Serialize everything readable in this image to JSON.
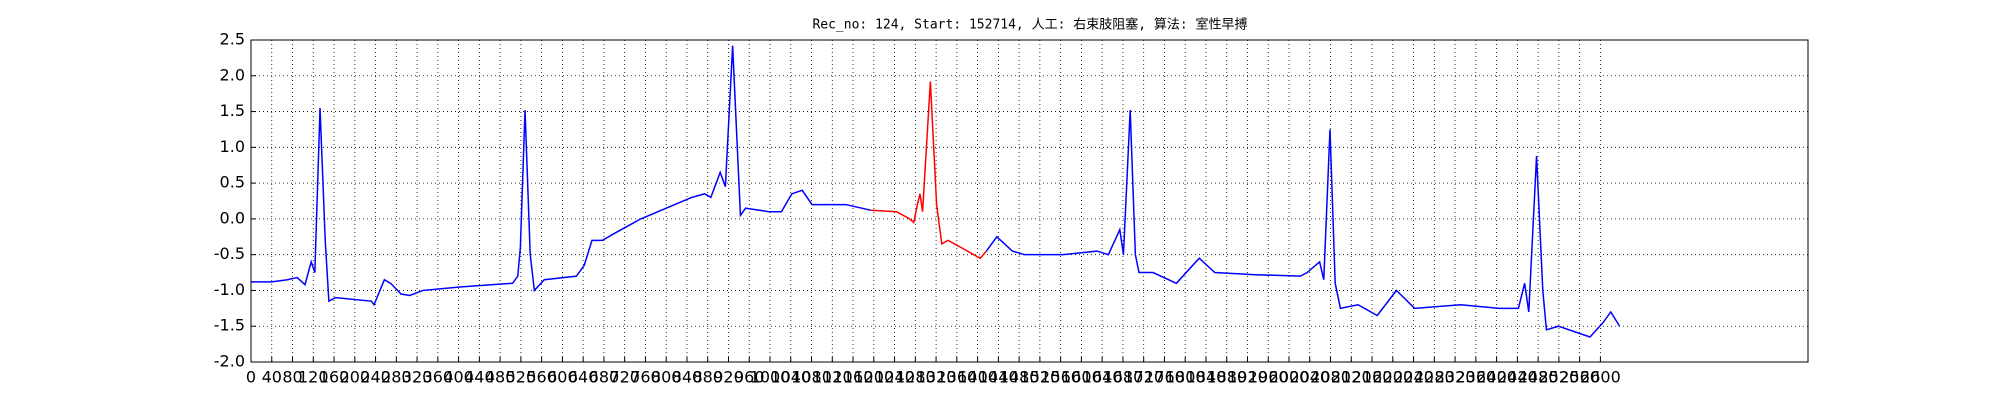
{
  "chart_data": {
    "type": "line",
    "title": "Rec_no: 124, Start: 152714, 人工: 右束肢阻塞, 算法: 室性早搏",
    "x": [
      0,
      40,
      70,
      89,
      104,
      116,
      123,
      133,
      143,
      150,
      163,
      232,
      237,
      257,
      269,
      289,
      306,
      331,
      405,
      504,
      514,
      519,
      528,
      538,
      546,
      565,
      627,
      642,
      657,
      677,
      701,
      751,
      800,
      849,
      874,
      886,
      904,
      914,
      928,
      943,
      953,
      998,
      1022,
      1042,
      1062,
      1081,
      1121,
      1146,
      1195,
      1244,
      1269,
      1277,
      1284,
      1289,
      1294,
      1309,
      1321,
      1331,
      1343,
      1368,
      1405,
      1417,
      1437,
      1467,
      1491,
      1565,
      1630,
      1652,
      1674,
      1681,
      1694,
      1704,
      1711,
      1738,
      1783,
      1827,
      1857,
      1936,
      2022,
      2035,
      2059,
      2067,
      2079,
      2089,
      2099,
      2133,
      2170,
      2207,
      2242,
      2331,
      2405,
      2430,
      2442,
      2454,
      2462,
      2477,
      2489,
      2496,
      2519,
      2580,
      2605,
      2620,
      2637
    ],
    "series": [
      {
        "color": "#0000ff",
        "values": [
          -0.88,
          -0.88,
          -0.85,
          -0.82,
          -0.92,
          -0.6,
          -0.75,
          1.55,
          -0.3,
          -1.15,
          -1.1,
          -1.15,
          -1.2,
          -0.85,
          -0.9,
          -1.05,
          -1.07,
          -1.0,
          -0.95,
          -0.9,
          -0.8,
          -0.4,
          1.52,
          -0.5,
          -1.0,
          -0.85,
          -0.8,
          -0.65,
          -0.3,
          -0.3,
          -0.2,
          0.0,
          0.15,
          0.3,
          0.35,
          0.3,
          0.65,
          0.45,
          2.42,
          0.05,
          0.15,
          0.1,
          0.1,
          0.35,
          0.4,
          0.2,
          0.2,
          0.2,
          0.12,
          null,
          null,
          null,
          null,
          null,
          null,
          null,
          null,
          null,
          null,
          null,
          null,
          -0.45,
          -0.25,
          -0.45,
          -0.5,
          -0.5,
          -0.45,
          -0.5,
          -0.15,
          -0.5,
          1.52,
          -0.5,
          -0.75,
          -0.75,
          -0.9,
          -0.55,
          -0.75,
          -0.78,
          -0.8,
          -0.75,
          -0.6,
          -0.85,
          1.25,
          -0.9,
          -1.25,
          -1.2,
          -1.35,
          -1.0,
          -1.25,
          -1.2,
          -1.25,
          -1.25,
          -1.25,
          -0.9,
          -1.3,
          0.88,
          -1.0,
          -1.55,
          -1.5,
          -1.65,
          -1.45,
          -1.3,
          -1.5
        ]
      },
      {
        "color": "#ff0000",
        "values": [
          null,
          null,
          null,
          null,
          null,
          null,
          null,
          null,
          null,
          null,
          null,
          null,
          null,
          null,
          null,
          null,
          null,
          null,
          null,
          null,
          null,
          null,
          null,
          null,
          null,
          null,
          null,
          null,
          null,
          null,
          null,
          null,
          null,
          null,
          null,
          null,
          null,
          null,
          null,
          null,
          null,
          null,
          null,
          null,
          null,
          null,
          null,
          null,
          0.12,
          0.1,
          0.0,
          -0.05,
          0.2,
          0.35,
          0.1,
          1.92,
          0.2,
          -0.35,
          -0.3,
          -0.4,
          -0.55,
          -0.45,
          null,
          null,
          null,
          null,
          null,
          null,
          null,
          null,
          null,
          null,
          null,
          null,
          null,
          null,
          null,
          null,
          null,
          null,
          null,
          null,
          null,
          null,
          null,
          null,
          null,
          null,
          null,
          null,
          null,
          null,
          null,
          null,
          null,
          null,
          null,
          null,
          null,
          null,
          null,
          null,
          null
        ]
      }
    ],
    "xlim": [
      0,
      3000
    ],
    "xticks": [
      0,
      40,
      80,
      120,
      160,
      200,
      240,
      280,
      320,
      360,
      400,
      440,
      480,
      520,
      560,
      600,
      640,
      680,
      720,
      760,
      800,
      840,
      880,
      920,
      960,
      1000,
      1040,
      1080,
      1120,
      1160,
      1200,
      1240,
      1280,
      1320,
      1360,
      1400,
      1440,
      1480,
      1520,
      1560,
      1600,
      1640,
      1680,
      1720,
      1760,
      1800,
      1840,
      1880,
      1920,
      1960,
      2000,
      2040,
      2080,
      2120,
      2160,
      2200,
      2240,
      2280,
      2320,
      2360,
      2400,
      2440,
      2480,
      2520,
      2560,
      2600
    ],
    "ylim": [
      -2.0,
      2.5
    ],
    "yticks": [
      {
        "value": -2.0,
        "label": "-2.0"
      },
      -1.5,
      {
        "value": -1.0,
        "label": "-1.0"
      },
      -0.5,
      {
        "value": 0.0,
        "label": "0.0"
      },
      0.5,
      {
        "value": 1.0,
        "label": "1.0"
      },
      1.5,
      {
        "value": 2.0,
        "label": "2.0"
      },
      2.5
    ],
    "grid": true
  }
}
